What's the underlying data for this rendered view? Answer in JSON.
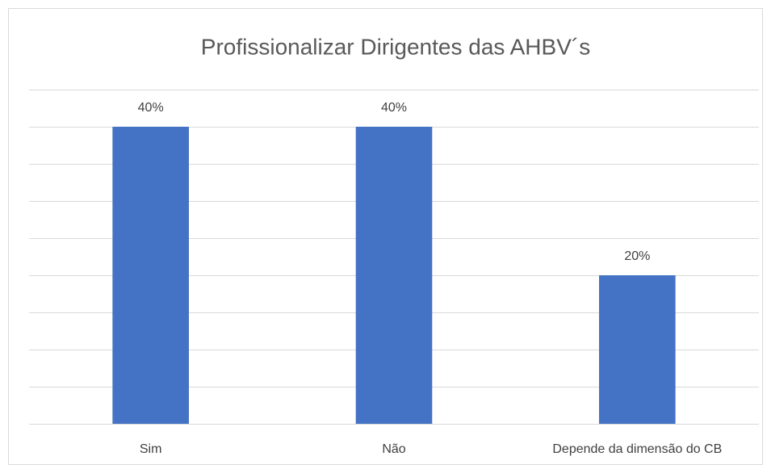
{
  "chart_data": {
    "type": "bar",
    "title": "Profissionalizar Dirigentes das AHBV´s",
    "categories": [
      "Sim",
      "Não",
      "Depende da dimensão do CB"
    ],
    "values": [
      40,
      40,
      20
    ],
    "value_labels": [
      "40%",
      "40%",
      "20%"
    ],
    "color": "#4472c4",
    "ylim": [
      0,
      45
    ],
    "yticks": [
      0,
      5,
      10,
      15,
      20,
      25,
      30,
      35,
      40,
      45
    ],
    "grid": true
  }
}
